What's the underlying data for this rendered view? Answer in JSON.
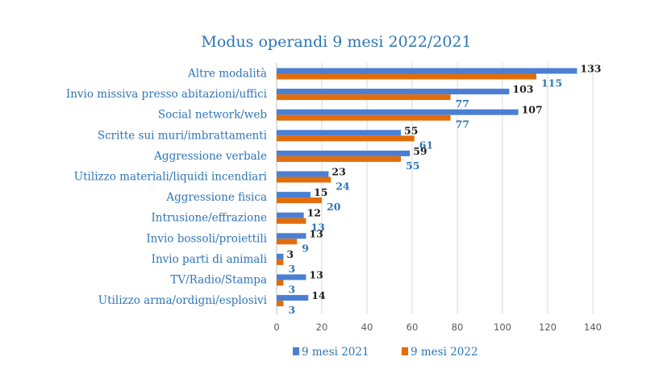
{
  "colors": {
    "series_2021": "#4a7fd4",
    "series_2022": "#e36c0a",
    "label_2021": "#1f1f1f",
    "label_2022": "#2e75b6",
    "text": "#2e75b6",
    "grid": "#d9d9d9",
    "axis": "#bfbfbf"
  },
  "chart_data": {
    "type": "bar",
    "orientation": "horizontal",
    "title": "Modus operandi 9 mesi 2022/2021",
    "categories": [
      "Altre modalità",
      "Invio missiva presso abitazioni/uffici",
      "Social network/web",
      "Scritte sui muri/imbrattamenti",
      "Aggressione verbale",
      "Utilizzo materiali/liquidi incendiari",
      "Aggressione fisica",
      "Intrusione/effrazione",
      "Invio bossoli/proiettili",
      "Invio parti di animali",
      "TV/Radio/Stampa",
      "Utilizzo arma/ordigni/esplosivi"
    ],
    "series": [
      {
        "name": "9 mesi 2021",
        "values": [
          133,
          103,
          107,
          55,
          59,
          23,
          15,
          12,
          13,
          3,
          13,
          14
        ]
      },
      {
        "name": "9 mesi 2022",
        "values": [
          115,
          77,
          77,
          61,
          55,
          24,
          20,
          13,
          9,
          3,
          3,
          3
        ]
      }
    ],
    "xlim": [
      0,
      140
    ],
    "xticks": [
      0,
      20,
      40,
      60,
      80,
      100,
      120,
      140
    ],
    "grid": true,
    "legend_position": "bottom"
  }
}
